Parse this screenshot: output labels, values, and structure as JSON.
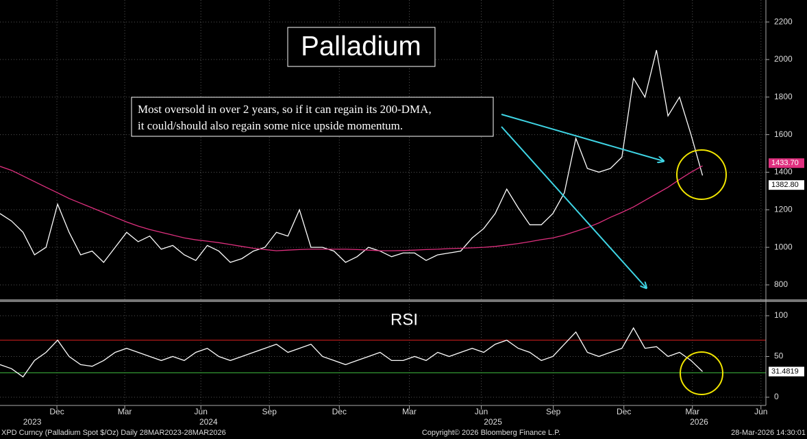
{
  "chart_data": [
    {
      "type": "line",
      "title": "Palladium",
      "annotation": [
        "Most oversold in over 2 years, so if it can regain its 200-DMA,",
        "it could/should also regain some nice upside momentum."
      ],
      "xlim": [
        0,
        66.5
      ],
      "xticks": [
        {
          "value": 4.94,
          "label": "Dec"
        },
        {
          "value": 10.83,
          "label": "Mar"
        },
        {
          "value": 17.44,
          "label": "Jun"
        },
        {
          "value": 23.39,
          "label": "Sep"
        },
        {
          "value": 29.46,
          "label": "Dec"
        },
        {
          "value": 35.54,
          "label": "Mar"
        },
        {
          "value": 41.79,
          "label": "Jun"
        },
        {
          "value": 48.04,
          "label": "Sep"
        },
        {
          "value": 54.17,
          "label": "Dec"
        },
        {
          "value": 60.12,
          "label": "Mar"
        },
        {
          "value": 66.07,
          "label": "Jun"
        }
      ],
      "years": [
        {
          "value": 2.8,
          "label": "2023"
        },
        {
          "value": 18.1,
          "label": "2024"
        },
        {
          "value": 42.8,
          "label": "2025"
        },
        {
          "value": 60.7,
          "label": "2026"
        }
      ],
      "ylim": [
        716,
        2317
      ],
      "yticks": [
        800,
        1000,
        1200,
        1400,
        1600,
        1800,
        2000,
        2200
      ],
      "grid": true,
      "series": [
        {
          "color": "#ffffff",
          "last_label": "1382.80",
          "values": [
            1180,
            1140,
            1080,
            960,
            1000,
            1230,
            1080,
            960,
            980,
            920,
            1000,
            1080,
            1030,
            1060,
            990,
            1010,
            960,
            930,
            1010,
            980,
            920,
            940,
            980,
            1000,
            1080,
            1060,
            1200,
            1000,
            1000,
            980,
            920,
            950,
            1000,
            980,
            950,
            970,
            970,
            930,
            960,
            970,
            980,
            1050,
            1100,
            1180,
            1310,
            1210,
            1120,
            1120,
            1180,
            1290,
            1580,
            1420,
            1400,
            1420,
            1480,
            1900,
            1800,
            2050,
            1700,
            1800,
            1600,
            1382.8
          ]
        },
        {
          "color": "#e0307f",
          "last_label": "1433.70",
          "values": [
            1431,
            1410,
            1380,
            1350,
            1320,
            1290,
            1260,
            1235,
            1210,
            1185,
            1160,
            1135,
            1113,
            1095,
            1080,
            1065,
            1050,
            1040,
            1033,
            1025,
            1015,
            1005,
            995,
            988,
            982,
            985,
            988,
            990,
            990,
            990,
            990,
            988,
            985,
            982,
            982,
            983,
            985,
            988,
            990,
            993,
            995,
            997,
            1000,
            1005,
            1012,
            1020,
            1030,
            1041,
            1050,
            1065,
            1085,
            1105,
            1130,
            1160,
            1186,
            1215,
            1250,
            1285,
            1320,
            1361,
            1400,
            1433.7
          ]
        }
      ]
    },
    {
      "type": "line",
      "title": "RSI",
      "xlim": [
        0,
        66.5
      ],
      "ylim": [
        -8.4,
        116.8
      ],
      "yticks": [
        0,
        50,
        100
      ],
      "reference_lines": [
        {
          "value": 70,
          "color": "#e02020"
        },
        {
          "value": 30,
          "color": "#40c040"
        }
      ],
      "series": [
        {
          "color": "#ffffff",
          "last_label": "31.4819",
          "values": [
            40,
            35,
            25,
            45,
            55,
            70,
            50,
            40,
            38,
            45,
            55,
            60,
            55,
            50,
            45,
            50,
            45,
            55,
            60,
            50,
            45,
            50,
            55,
            60,
            65,
            55,
            60,
            65,
            50,
            45,
            40,
            45,
            50,
            55,
            45,
            45,
            50,
            45,
            55,
            50,
            55,
            60,
            55,
            65,
            70,
            60,
            55,
            45,
            50,
            65,
            80,
            55,
            50,
            55,
            60,
            85,
            60,
            62,
            50,
            55,
            45,
            31.4819
          ]
        }
      ]
    }
  ],
  "footer": {
    "left": "XPD Curncy (Palladium Spot  $/Oz) Daily 28MAR2023-28MAR2026",
    "center": "Copyright© 2026 Bloomberg Finance L.P.",
    "right": "28-Mar-2026 14:30:01"
  }
}
